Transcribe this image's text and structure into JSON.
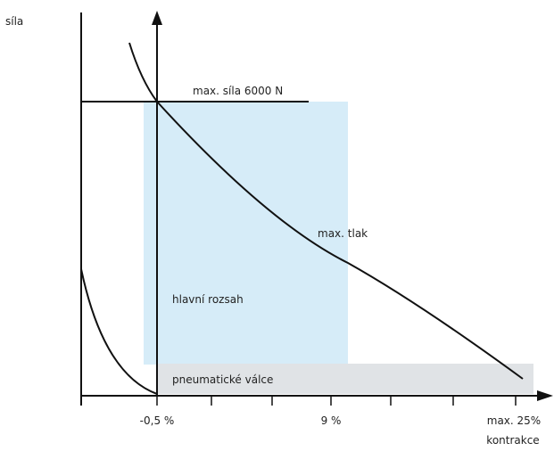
{
  "chart_data": {
    "type": "line",
    "ylabel": "síla",
    "xlabel": "kontrakce",
    "x_ticks": [
      "-0,5 %",
      "9 %",
      "max. 25%"
    ],
    "annotations": {
      "max_force": "max. síla 6000 N",
      "max_pressure": "max. tlak",
      "main_range": "hlavní rozsah",
      "pneumatic_cylinders": "pneumatické válce"
    },
    "colors": {
      "main_range_fill": "#d6ecf8",
      "pneumatic_fill": "#e0e3e6",
      "lines": "#111111"
    }
  }
}
